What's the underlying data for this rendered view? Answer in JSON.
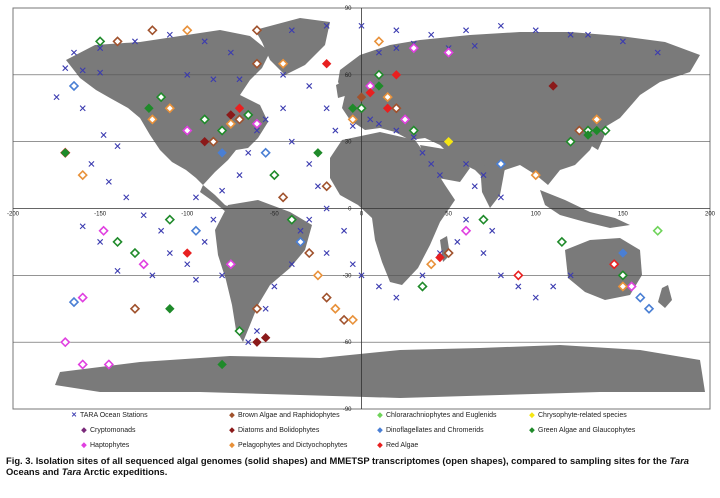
{
  "axes": {
    "x_ticks": [
      "-200",
      "-150",
      "-100",
      "-50",
      "0",
      "50",
      "100",
      "150",
      "200"
    ],
    "y_ticks": [
      "90",
      "60",
      "30",
      "0",
      "-30",
      "-60",
      "-90"
    ]
  },
  "legend": [
    {
      "label": "TARA Ocean Stations",
      "symbol": "cross",
      "color": "#3b3bb0"
    },
    {
      "label": "Brown Algae and Raphidophytes",
      "symbol": "diamond",
      "color": "#a0522d"
    },
    {
      "label": "Chlorarachniophytes and Euglenids",
      "symbol": "diamond",
      "color": "#6fd35a"
    },
    {
      "label": "Chrysophyte-related species",
      "symbol": "diamond",
      "color": "#f5e614"
    },
    {
      "label": "Cryptomonads",
      "symbol": "diamond",
      "color": "#7a2a7a"
    },
    {
      "label": "Diatoms and Bolidophytes",
      "symbol": "diamond",
      "color": "#8b1a1a"
    },
    {
      "label": "Dinoflagellates and Chromerids",
      "symbol": "diamond",
      "color": "#4a7fd4"
    },
    {
      "label": "Green Algae and Glaucophytes",
      "symbol": "diamond",
      "color": "#1f8a2a"
    },
    {
      "label": "Haptophytes",
      "symbol": "diamond",
      "color": "#e040e0"
    },
    {
      "label": "Pelagophytes and Dictyochophytes",
      "symbol": "diamond",
      "color": "#e8913a"
    },
    {
      "label": "Red Algae",
      "symbol": "diamond",
      "color": "#e82020"
    }
  ],
  "caption": {
    "part1": "Fig. 3. Isolation sites of all sequenced algal genomes (solid shapes) and MMETSP transcriptomes (open shapes), compared to sampling sites for the ",
    "tara1": "Tara",
    "part2": " Oceans and ",
    "tara2": "Tara",
    "part3": " Arctic expeditions."
  },
  "sites": {
    "tara_stations": [
      [
        -170,
        63
      ],
      [
        -160,
        62
      ],
      [
        -150,
        61
      ],
      [
        -175,
        50
      ],
      [
        -160,
        45
      ],
      [
        -148,
        33
      ],
      [
        -140,
        28
      ],
      [
        -155,
        20
      ],
      [
        -145,
        12
      ],
      [
        -135,
        5
      ],
      [
        -125,
        -3
      ],
      [
        -115,
        -10
      ],
      [
        -110,
        -20
      ],
      [
        -100,
        -25
      ],
      [
        -90,
        -15
      ],
      [
        -85,
        -5
      ],
      [
        -80,
        -30
      ],
      [
        -95,
        -32
      ],
      [
        -120,
        -30
      ],
      [
        -140,
        -28
      ],
      [
        -150,
        -15
      ],
      [
        -160,
        -8
      ],
      [
        -95,
        5
      ],
      [
        -80,
        8
      ],
      [
        -70,
        15
      ],
      [
        -65,
        25
      ],
      [
        -60,
        35
      ],
      [
        -55,
        40
      ],
      [
        -45,
        45
      ],
      [
        -40,
        30
      ],
      [
        -30,
        20
      ],
      [
        -25,
        10
      ],
      [
        -20,
        0
      ],
      [
        -10,
        -10
      ],
      [
        -5,
        -25
      ],
      [
        0,
        -30
      ],
      [
        10,
        -35
      ],
      [
        20,
        -40
      ],
      [
        35,
        -30
      ],
      [
        45,
        -20
      ],
      [
        55,
        -15
      ],
      [
        60,
        -5
      ],
      [
        65,
        10
      ],
      [
        70,
        15
      ],
      [
        60,
        20
      ],
      [
        45,
        15
      ],
      [
        40,
        20
      ],
      [
        35,
        25
      ],
      [
        30,
        32
      ],
      [
        20,
        35
      ],
      [
        10,
        38
      ],
      [
        5,
        40
      ],
      [
        -5,
        37
      ],
      [
        -15,
        35
      ],
      [
        -20,
        45
      ],
      [
        -30,
        55
      ],
      [
        -45,
        60
      ],
      [
        -60,
        65
      ],
      [
        -75,
        70
      ],
      [
        -90,
        75
      ],
      [
        -110,
        78
      ],
      [
        -130,
        75
      ],
      [
        -150,
        72
      ],
      [
        -165,
        70
      ],
      [
        80,
        5
      ],
      [
        75,
        -10
      ],
      [
        70,
        -20
      ],
      [
        80,
        -30
      ],
      [
        90,
        -35
      ],
      [
        100,
        -40
      ],
      [
        110,
        -35
      ],
      [
        120,
        -30
      ],
      [
        -55,
        -45
      ],
      [
        -60,
        -55
      ],
      [
        -65,
        -60
      ],
      [
        -50,
        -35
      ],
      [
        -40,
        -25
      ],
      [
        -35,
        -10
      ],
      [
        -30,
        -5
      ],
      [
        -20,
        -20
      ],
      [
        100,
        80
      ],
      [
        80,
        82
      ],
      [
        60,
        80
      ],
      [
        40,
        78
      ],
      [
        20,
        80
      ],
      [
        0,
        82
      ],
      [
        -20,
        82
      ],
      [
        -40,
        80
      ],
      [
        130,
        78
      ],
      [
        150,
        75
      ],
      [
        170,
        70
      ],
      [
        -100,
        60
      ],
      [
        -85,
        58
      ],
      [
        -70,
        58
      ],
      [
        10,
        70
      ],
      [
        20,
        72
      ],
      [
        30,
        74
      ],
      [
        50,
        72
      ],
      [
        65,
        73
      ],
      [
        120,
        78
      ]
    ],
    "genome": [
      [
        -75,
        42,
        "#8b1a1a"
      ],
      [
        -70,
        45,
        "#e82020"
      ],
      [
        -122,
        45,
        "#1f8a2a"
      ],
      [
        -80,
        25,
        "#4a7fd4"
      ],
      [
        -90,
        30,
        "#8b1a1a"
      ],
      [
        5,
        52,
        "#e82020"
      ],
      [
        10,
        55,
        "#1f8a2a"
      ],
      [
        0,
        50,
        "#a0522d"
      ],
      [
        15,
        45,
        "#e82020"
      ],
      [
        -5,
        45,
        "#1f8a2a"
      ],
      [
        130,
        33,
        "#1f8a2a"
      ],
      [
        135,
        35,
        "#1f8a2a"
      ],
      [
        110,
        55,
        "#8b1a1a"
      ],
      [
        45,
        -22,
        "#e82020"
      ],
      [
        -170,
        25,
        "#1f8a2a"
      ],
      [
        -100,
        -20,
        "#e82020"
      ],
      [
        -60,
        -60,
        "#8b1a1a"
      ],
      [
        -55,
        -58,
        "#8b1a1a"
      ],
      [
        -25,
        25,
        "#1f8a2a"
      ],
      [
        50,
        30,
        "#f5e614"
      ],
      [
        150,
        -20,
        "#4a7fd4"
      ],
      [
        -80,
        -70,
        "#1f8a2a"
      ],
      [
        -110,
        -45,
        "#1f8a2a"
      ],
      [
        -20,
        65,
        "#e82020"
      ],
      [
        20,
        60,
        "#e82020"
      ]
    ],
    "transcriptome": [
      [
        -170,
        25,
        "#e82020"
      ],
      [
        -160,
        15,
        "#e8913a"
      ],
      [
        -148,
        -10,
        "#e040e0"
      ],
      [
        -140,
        -15,
        "#1f8a2a"
      ],
      [
        -130,
        -20,
        "#1f8a2a"
      ],
      [
        -125,
        -25,
        "#e040e0"
      ],
      [
        -120,
        40,
        "#e8913a"
      ],
      [
        -115,
        50,
        "#1f8a2a"
      ],
      [
        -110,
        45,
        "#e8913a"
      ],
      [
        -100,
        35,
        "#e040e0"
      ],
      [
        -90,
        40,
        "#1f8a2a"
      ],
      [
        -85,
        30,
        "#a0522d"
      ],
      [
        -80,
        35,
        "#1f8a2a"
      ],
      [
        -75,
        38,
        "#e8913a"
      ],
      [
        -70,
        40,
        "#a0522d"
      ],
      [
        -65,
        42,
        "#1f8a2a"
      ],
      [
        -60,
        38,
        "#e040e0"
      ],
      [
        -55,
        25,
        "#4a7fd4"
      ],
      [
        -50,
        15,
        "#1f8a2a"
      ],
      [
        -45,
        5,
        "#a0522d"
      ],
      [
        -40,
        -5,
        "#1f8a2a"
      ],
      [
        -35,
        -15,
        "#4a7fd4"
      ],
      [
        -30,
        -20,
        "#a0522d"
      ],
      [
        -25,
        -30,
        "#e8913a"
      ],
      [
        -20,
        -40,
        "#a0522d"
      ],
      [
        -15,
        -45,
        "#e8913a"
      ],
      [
        -10,
        -50,
        "#a0522d"
      ],
      [
        -5,
        -50,
        "#e8913a"
      ],
      [
        5,
        55,
        "#e040e0"
      ],
      [
        10,
        60,
        "#1f8a2a"
      ],
      [
        15,
        50,
        "#e8913a"
      ],
      [
        20,
        45,
        "#a0522d"
      ],
      [
        25,
        40,
        "#e040e0"
      ],
      [
        0,
        45,
        "#1f8a2a"
      ],
      [
        -5,
        40,
        "#e8913a"
      ],
      [
        30,
        35,
        "#1f8a2a"
      ],
      [
        35,
        -35,
        "#1f8a2a"
      ],
      [
        40,
        -25,
        "#e8913a"
      ],
      [
        50,
        -20,
        "#a0522d"
      ],
      [
        60,
        -10,
        "#e040e0"
      ],
      [
        70,
        -5,
        "#1f8a2a"
      ],
      [
        80,
        20,
        "#4a7fd4"
      ],
      [
        100,
        15,
        "#e8913a"
      ],
      [
        120,
        30,
        "#1f8a2a"
      ],
      [
        125,
        35,
        "#a0522d"
      ],
      [
        130,
        35,
        "#1f8a2a"
      ],
      [
        135,
        40,
        "#e8913a"
      ],
      [
        140,
        35,
        "#1f8a2a"
      ],
      [
        150,
        -30,
        "#1f8a2a"
      ],
      [
        155,
        -35,
        "#e040e0"
      ],
      [
        160,
        -40,
        "#4a7fd4"
      ],
      [
        165,
        -45,
        "#4a7fd4"
      ],
      [
        150,
        -35,
        "#e8913a"
      ],
      [
        145,
        -25,
        "#e82020"
      ],
      [
        -170,
        -60,
        "#e040e0"
      ],
      [
        -160,
        -70,
        "#e040e0"
      ],
      [
        -145,
        -70,
        "#e040e0"
      ],
      [
        -130,
        -45,
        "#a0522d"
      ],
      [
        -160,
        -40,
        "#e040e0"
      ],
      [
        -165,
        -42,
        "#4a7fd4"
      ],
      [
        -150,
        75,
        "#1f8a2a"
      ],
      [
        -140,
        75,
        "#a0522d"
      ],
      [
        -120,
        80,
        "#a0522d"
      ],
      [
        -100,
        80,
        "#e8913a"
      ],
      [
        -60,
        80,
        "#a0522d"
      ],
      [
        -60,
        65,
        "#a0522d"
      ],
      [
        -45,
        65,
        "#e8913a"
      ],
      [
        10,
        75,
        "#e8913a"
      ],
      [
        30,
        72,
        "#e040e0"
      ],
      [
        50,
        70,
        "#e040e0"
      ],
      [
        -165,
        55,
        "#4a7fd4"
      ],
      [
        -110,
        -5,
        "#1f8a2a"
      ],
      [
        -75,
        -25,
        "#e040e0"
      ],
      [
        -60,
        -45,
        "#a0522d"
      ],
      [
        -70,
        -55,
        "#1f8a2a"
      ],
      [
        115,
        -15,
        "#1f8a2a"
      ],
      [
        90,
        -30,
        "#e82020"
      ],
      [
        -95,
        -10,
        "#4a7fd4"
      ],
      [
        170,
        -10,
        "#6fd35a"
      ],
      [
        -20,
        10,
        "#a0522d"
      ]
    ]
  }
}
